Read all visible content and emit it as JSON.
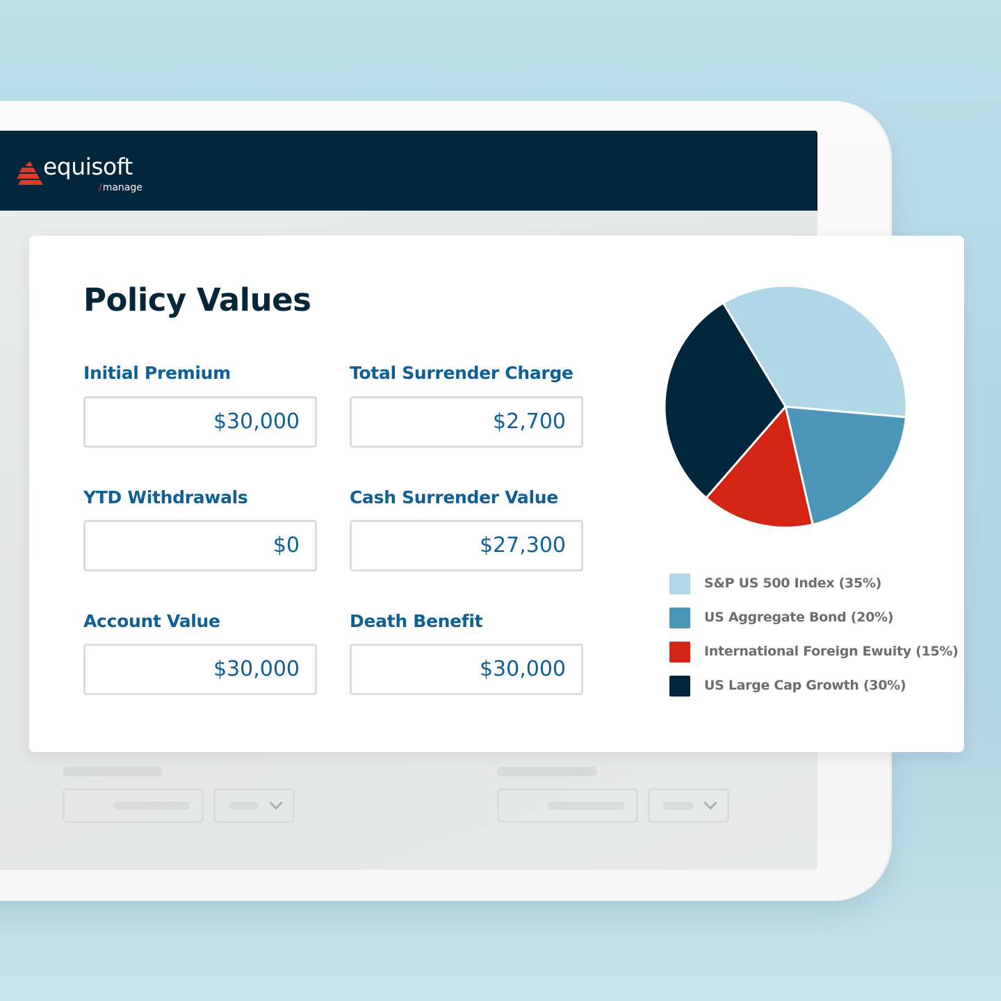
{
  "app": {
    "logo_text": "equisoft",
    "logo_sub_slash": "/",
    "logo_sub": "manage",
    "brand_colors": {
      "navy": "#02263b",
      "red": "#e23b2a",
      "label_blue": "#0e5f93"
    }
  },
  "card": {
    "title": "Policy Values",
    "fields": [
      {
        "label": "Initial Premium",
        "value": "$30,000"
      },
      {
        "label": "Total Surrender Charge",
        "value": "$2,700"
      },
      {
        "label": "YTD Withdrawals",
        "value": "$0"
      },
      {
        "label": "Cash Surrender Value",
        "value": "$27,300"
      },
      {
        "label": "Account Value",
        "value": "$30,000"
      },
      {
        "label": "Death Benefit",
        "value": "$30,000"
      }
    ]
  },
  "chart_data": {
    "type": "pie",
    "title": "",
    "categories": [
      "S&P US 500 Index",
      "US Aggregate Bond",
      "International Foreign Ewuity",
      "US Large Cap Growth"
    ],
    "values": [
      35,
      20,
      15,
      30
    ],
    "colors": [
      "#b0d6e8",
      "#4b95b8",
      "#d42514",
      "#02263b"
    ],
    "legend_position": "bottom",
    "legend": [
      {
        "label": "S&P US 500 Index (35%)",
        "color": "#b0d6e8"
      },
      {
        "label": "US Aggregate Bond (20%)",
        "color": "#4b95b8"
      },
      {
        "label": "International Foreign Ewuity (15%)",
        "color": "#d42514"
      },
      {
        "label": "US Large Cap Growth (30%)",
        "color": "#02263b"
      }
    ]
  }
}
